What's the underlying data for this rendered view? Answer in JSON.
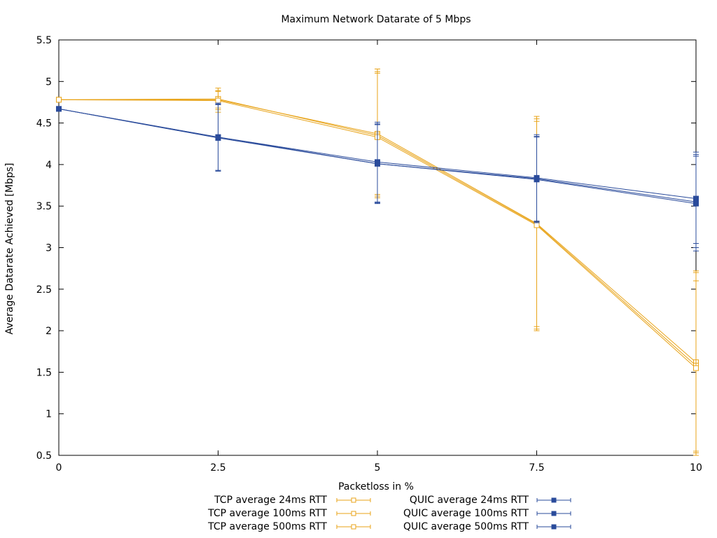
{
  "chart_data": {
    "type": "line",
    "title": "Maximum Network Datarate of 5 Mbps",
    "xlabel": "Packetloss in %",
    "ylabel": "Average Datarate Achieved [Mbps]",
    "xlim": [
      0,
      10
    ],
    "ylim": [
      0.5,
      5.5
    ],
    "x_ticks": [
      "0",
      "2.5",
      "5",
      "7.5",
      "10"
    ],
    "y_ticks": [
      "0.5",
      "1",
      "1.5",
      "2",
      "2.5",
      "3",
      "3.5",
      "4",
      "4.5",
      "5",
      "5.5"
    ],
    "grid": false,
    "legend_position": "bottom",
    "error_bars": true,
    "x": [
      0,
      2.5,
      5,
      7.5,
      10
    ],
    "series": [
      {
        "name": "TCP average 24ms RTT",
        "color": "#e8a317",
        "marker": "open-square",
        "values": [
          4.78,
          4.78,
          4.37,
          3.29,
          1.62
        ],
        "err_low": [
          4.78,
          4.63,
          3.64,
          2.05,
          0.53
        ],
        "err_high": [
          4.78,
          4.92,
          5.12,
          4.55,
          2.7
        ]
      },
      {
        "name": "TCP average 100ms RTT",
        "color": "#e8a317",
        "marker": "open-square",
        "values": [
          4.78,
          4.79,
          4.35,
          3.28,
          1.58
        ],
        "err_low": [
          4.78,
          4.68,
          3.62,
          2.02,
          0.55
        ],
        "err_high": [
          4.78,
          4.89,
          5.15,
          4.58,
          2.6
        ]
      },
      {
        "name": "TCP average 500ms RTT",
        "color": "#e8a317",
        "marker": "open-square",
        "values": [
          4.78,
          4.77,
          4.33,
          3.27,
          1.55
        ],
        "err_low": [
          4.78,
          4.66,
          3.6,
          2.0,
          0.5
        ],
        "err_high": [
          4.78,
          4.88,
          5.1,
          4.52,
          2.72
        ]
      },
      {
        "name": "QUIC average 24ms RTT",
        "color": "#2a4b9b",
        "marker": "filled-square",
        "values": [
          4.67,
          4.33,
          4.03,
          3.84,
          3.59
        ],
        "err_low": [
          4.67,
          3.93,
          3.55,
          3.32,
          3.05
        ],
        "err_high": [
          4.67,
          4.74,
          4.51,
          4.36,
          4.15
        ]
      },
      {
        "name": "QUIC average 100ms RTT",
        "color": "#2a4b9b",
        "marker": "filled-square",
        "values": [
          4.67,
          4.32,
          4.01,
          3.83,
          3.55
        ],
        "err_low": [
          4.67,
          3.92,
          3.54,
          3.31,
          3.0
        ],
        "err_high": [
          4.67,
          4.73,
          4.49,
          4.34,
          4.12
        ]
      },
      {
        "name": "QUIC average 500ms RTT",
        "color": "#2a4b9b",
        "marker": "filled-square",
        "values": [
          4.67,
          4.33,
          4.01,
          3.82,
          3.53
        ],
        "err_low": [
          4.67,
          3.93,
          3.53,
          3.3,
          2.96
        ],
        "err_high": [
          4.67,
          4.72,
          4.48,
          4.33,
          4.1
        ]
      }
    ]
  }
}
